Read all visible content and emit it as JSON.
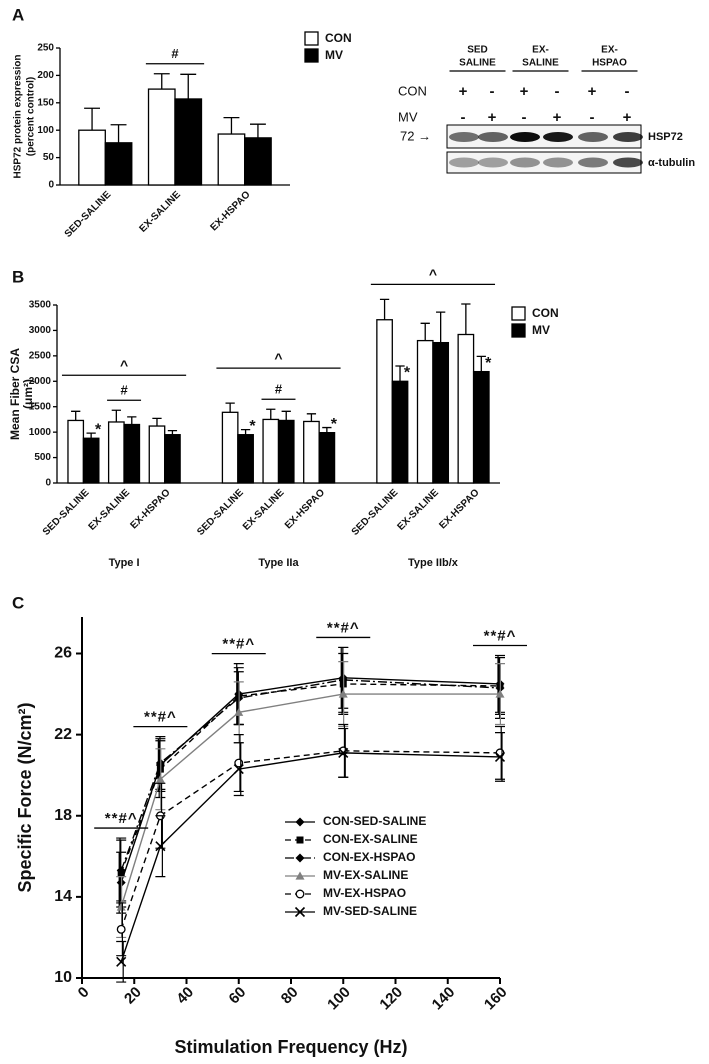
{
  "panels": [
    "A",
    "B",
    "C"
  ],
  "blot": {
    "columns": [
      [
        "SED",
        "SALINE"
      ],
      [
        "EX-",
        "SALINE"
      ],
      [
        "EX-",
        "HSPAO"
      ]
    ],
    "rows": [
      {
        "name": "CON",
        "signs": [
          "+",
          "-",
          "+",
          "-",
          "+",
          "-"
        ]
      },
      {
        "name": "MV",
        "signs": [
          "-",
          "+",
          "-",
          "+",
          "-",
          "+"
        ]
      }
    ],
    "marker": "72 →",
    "bands": [
      "HSP72",
      "α-tubulin"
    ]
  },
  "chart_data": [
    {
      "type": "bar",
      "ylabel": [
        "HSP72 protein expression",
        "(percent control)"
      ],
      "categories": [
        "SED-SALINE",
        "EX-SALINE",
        "EX-HSPAO"
      ],
      "series": [
        {
          "name": "CON",
          "color": "#ffffff",
          "values": [
            100,
            175,
            93
          ],
          "errors": [
            40,
            28,
            30
          ]
        },
        {
          "name": "MV",
          "color": "#000000",
          "values": [
            77,
            157,
            86
          ],
          "errors": [
            33,
            45,
            25
          ]
        }
      ],
      "pair_marks": [
        null,
        "#",
        null
      ],
      "ylim": [
        0,
        250
      ],
      "yticks": [
        0,
        50,
        100,
        150,
        200,
        250
      ]
    },
    {
      "type": "bar",
      "ylabel": [
        "Mean Fiber CSA",
        "(μm²)"
      ],
      "groups": [
        "Type I",
        "Type IIa",
        "Type IIb/x"
      ],
      "group_marks": [
        "^",
        "^",
        "^"
      ],
      "categories": [
        "SED-SALINE",
        "EX-SALINE",
        "EX-HSPAO",
        "SED-SALINE",
        "EX-SALINE",
        "EX-HSPAO",
        "SED-SALINE",
        "EX-SALINE",
        "EX-HSPAO"
      ],
      "series": [
        {
          "name": "CON",
          "color": "#ffffff",
          "values": [
            1230,
            1200,
            1120,
            1390,
            1250,
            1210,
            3210,
            2800,
            2920
          ],
          "errors": [
            180,
            230,
            150,
            180,
            200,
            150,
            400,
            340,
            600
          ]
        },
        {
          "name": "MV",
          "color": "#000000",
          "values": [
            880,
            1150,
            950,
            950,
            1230,
            990,
            2000,
            2760,
            2190
          ],
          "errors": [
            100,
            150,
            80,
            100,
            180,
            100,
            300,
            600,
            300
          ],
          "marks": [
            "*",
            null,
            null,
            "*",
            null,
            "*",
            "*",
            null,
            "*"
          ]
        }
      ],
      "pair_marks": [
        null,
        "#",
        null,
        null,
        "#",
        null,
        null,
        null,
        null
      ],
      "ylim": [
        0,
        3500
      ],
      "yticks": [
        0,
        500,
        1000,
        1500,
        2000,
        2500,
        3000,
        3500
      ]
    },
    {
      "type": "line",
      "xlabel": "Stimulation Frequency (Hz)",
      "ylabel": "Specific Force (N/cm²)",
      "x": [
        15,
        30,
        60,
        100,
        160
      ],
      "point_labels": [
        "**#^",
        "**#^",
        "**#^",
        "**#^",
        "**#^"
      ],
      "series": [
        {
          "name": "CON-SED-SALINE",
          "color": "#000000",
          "dash": "solid",
          "marker": "diamond",
          "values": [
            14.7,
            20.5,
            24.0,
            24.8,
            24.5
          ],
          "errors": [
            1.5,
            1.3,
            1.5,
            1.5,
            1.4
          ]
        },
        {
          "name": "CON-EX-SALINE",
          "color": "#000000",
          "dash": "dashed",
          "marker": "square",
          "values": [
            15.2,
            20.3,
            23.9,
            24.5,
            24.4
          ],
          "errors": [
            1.7,
            1.4,
            1.4,
            1.5,
            1.4
          ]
        },
        {
          "name": "CON-EX-HSPAO",
          "color": "#000000",
          "dash": "dashdot",
          "marker": "diamond",
          "values": [
            15.3,
            20.6,
            23.8,
            24.7,
            24.3
          ],
          "errors": [
            1.5,
            1.3,
            1.3,
            1.6,
            1.5
          ]
        },
        {
          "name": "MV-EX-SALINE",
          "color": "#808080",
          "dash": "solid",
          "marker": "triangle",
          "values": [
            13.5,
            19.8,
            23.1,
            24.0,
            24.0
          ],
          "errors": [
            1.5,
            1.5,
            1.5,
            1.6,
            1.5
          ]
        },
        {
          "name": "MV-EX-HSPAO",
          "color": "#000000",
          "dash": "dashed",
          "marker": "circle",
          "values": [
            12.4,
            18.0,
            20.6,
            21.2,
            21.1
          ],
          "errors": [
            1.3,
            1.6,
            1.4,
            1.3,
            1.3
          ]
        },
        {
          "name": "MV-SED-SALINE",
          "color": "#000000",
          "dash": "solid",
          "marker": "x",
          "values": [
            10.8,
            16.5,
            20.3,
            21.1,
            20.9
          ],
          "errors": [
            1.0,
            1.5,
            1.3,
            1.2,
            1.2
          ]
        }
      ],
      "xlim": [
        0,
        160
      ],
      "xticks": [
        0,
        20,
        40,
        60,
        80,
        100,
        120,
        140,
        160
      ],
      "ylim": [
        10,
        27.8
      ],
      "yticks": [
        10,
        14,
        18,
        22,
        26
      ]
    }
  ]
}
